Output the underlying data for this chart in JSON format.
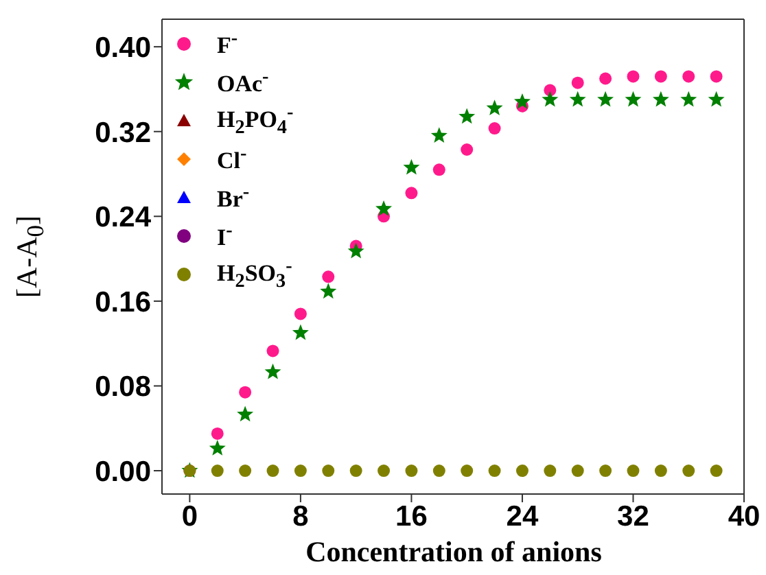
{
  "chart_data": {
    "type": "scatter",
    "xlabel": "Concentration of anions",
    "ylabel": "[A-A$_{0}$]",
    "x": [
      0,
      2,
      4,
      6,
      8,
      10,
      12,
      14,
      16,
      18,
      20,
      22,
      24,
      26,
      28,
      30,
      32,
      34,
      36,
      38
    ],
    "xlim": [
      -2,
      40
    ],
    "xticks": [
      0,
      8,
      16,
      24,
      32,
      40
    ],
    "ylim": [
      -0.022,
      0.426
    ],
    "yticks": [
      {
        "value": 0,
        "label": "0.00"
      },
      {
        "value": 0.08,
        "label": "0.08"
      },
      {
        "value": 0.16,
        "label": "0.16"
      },
      {
        "value": 0.24,
        "label": "0.24"
      },
      {
        "value": 0.32,
        "label": "0.32"
      },
      {
        "value": 0.4,
        "label": "0.40"
      }
    ],
    "legend": "top left",
    "series": [
      {
        "name": "F$^{-}$",
        "color": "#ff1a8c",
        "marker": "circle",
        "values": [
          0,
          0.035,
          0.074,
          0.113,
          0.148,
          0.183,
          0.212,
          0.24,
          0.262,
          0.284,
          0.303,
          0.323,
          0.344,
          0.359,
          0.366,
          0.37,
          0.372,
          0.372,
          0.372,
          0.372
        ]
      },
      {
        "name": "OAc$^{-}$",
        "color": "#008000",
        "marker": "star",
        "values": [
          0,
          0.021,
          0.053,
          0.093,
          0.13,
          0.169,
          0.207,
          0.247,
          0.286,
          0.316,
          0.334,
          0.342,
          0.348,
          0.35,
          0.35,
          0.35,
          0.35,
          0.35,
          0.35,
          0.35
        ]
      },
      {
        "name": "H$_{2}$PO$_{4}$$^{-}$",
        "color": "#8b0000",
        "marker": "triangle",
        "values": [
          null,
          null,
          null,
          null,
          null,
          null,
          null,
          null,
          null,
          null,
          null,
          null,
          null,
          null,
          null,
          null,
          null,
          null,
          null,
          null
        ]
      },
      {
        "name": "Cl$^{-}$",
        "color": "#ff8000",
        "marker": "diamond",
        "values": [
          null,
          null,
          null,
          null,
          null,
          null,
          null,
          null,
          null,
          null,
          null,
          null,
          null,
          null,
          null,
          null,
          null,
          null,
          null,
          null
        ]
      },
      {
        "name": "Br$^{-}$",
        "color": "#0000ff",
        "marker": "triangle",
        "values": [
          null,
          null,
          null,
          null,
          null,
          null,
          null,
          null,
          null,
          null,
          null,
          null,
          null,
          null,
          null,
          null,
          null,
          null,
          null,
          null
        ]
      },
      {
        "name": "I$^{-}$",
        "color": "#800080",
        "marker": "circle",
        "values": [
          null,
          null,
          null,
          null,
          null,
          null,
          null,
          null,
          null,
          null,
          null,
          null,
          null,
          null,
          null,
          null,
          null,
          null,
          null,
          null
        ]
      },
      {
        "name": "H$_{2}$SO$_{3}$$^{-}$",
        "color": "#808000",
        "marker": "circle",
        "values": [
          0,
          0,
          0,
          0,
          0,
          0,
          0,
          0,
          0,
          0,
          0,
          0,
          0,
          0,
          0,
          0,
          0,
          0,
          0,
          0
        ]
      }
    ]
  }
}
